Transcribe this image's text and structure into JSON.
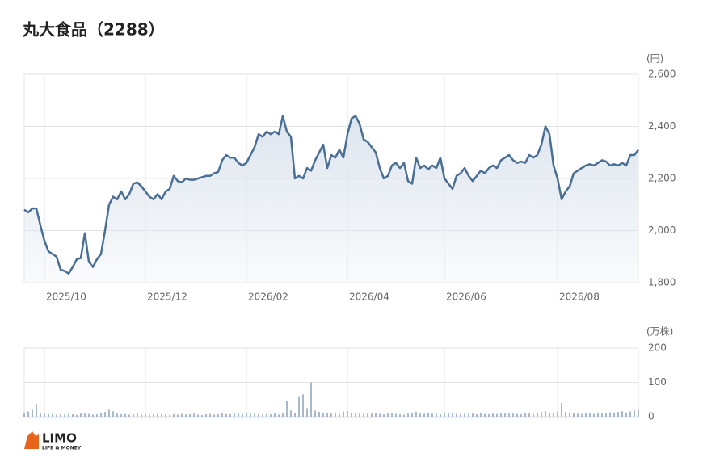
{
  "chart_data": [
    {
      "type": "line",
      "title": "丸大食品（2288）",
      "y_label": "(円)",
      "color": "#4a6f96",
      "fill": "#dde5ee",
      "grid": true,
      "xlim": [
        0,
        152
      ],
      "xticks": [
        {
          "value": 5,
          "label": "2025/10"
        },
        {
          "value": 30,
          "label": "2025/12"
        },
        {
          "value": 55,
          "label": "2026/02"
        },
        {
          "value": 80,
          "label": "2026/04"
        },
        {
          "value": 104,
          "label": "2026/06"
        },
        {
          "value": 132,
          "label": "2026/08"
        }
      ],
      "ylim": [
        1800,
        2600
      ],
      "yticks": [
        {
          "value": 1800,
          "label": "1,800"
        },
        {
          "value": 2000,
          "label": "2,000"
        },
        {
          "value": 2200,
          "label": "2,200"
        },
        {
          "value": 2400,
          "label": "2,400"
        },
        {
          "value": 2600,
          "label": "2,600"
        }
      ],
      "values": [
        2080,
        2070,
        2085,
        2085,
        2020,
        1960,
        1920,
        1910,
        1900,
        1850,
        1845,
        1835,
        1860,
        1890,
        1895,
        1990,
        1880,
        1860,
        1890,
        1910,
        2000,
        2100,
        2130,
        2120,
        2150,
        2120,
        2140,
        2180,
        2185,
        2170,
        2150,
        2130,
        2120,
        2140,
        2120,
        2150,
        2160,
        2210,
        2190,
        2185,
        2200,
        2195,
        2195,
        2200,
        2205,
        2210,
        2210,
        2220,
        2225,
        2270,
        2290,
        2280,
        2280,
        2260,
        2250,
        2260,
        2290,
        2320,
        2370,
        2360,
        2380,
        2370,
        2380,
        2370,
        2440,
        2380,
        2360,
        2200,
        2210,
        2200,
        2240,
        2230,
        2270,
        2300,
        2330,
        2240,
        2290,
        2280,
        2310,
        2280,
        2370,
        2430,
        2440,
        2410,
        2350,
        2340,
        2320,
        2300,
        2240,
        2200,
        2210,
        2250,
        2260,
        2240,
        2260,
        2190,
        2180,
        2280,
        2240,
        2250,
        2235,
        2250,
        2240,
        2280,
        2200,
        2180,
        2160,
        2210,
        2220,
        2240,
        2210,
        2190,
        2210,
        2230,
        2220,
        2240,
        2250,
        2240,
        2270,
        2280,
        2290,
        2270,
        2260,
        2265,
        2260,
        2290,
        2280,
        2290,
        2330,
        2400,
        2370,
        2250,
        2200,
        2120,
        2150,
        2170,
        2220,
        2230,
        2240,
        2250,
        2255,
        2250,
        2260,
        2270,
        2265,
        2250,
        2255,
        2250,
        2260,
        2250,
        2290,
        2290,
        2310
      ]
    },
    {
      "type": "bar",
      "y_label": "(万株)",
      "color": "#a9b9cc",
      "grid": true,
      "xlim": [
        0,
        152
      ],
      "xgrid": [
        5,
        30,
        55,
        80,
        104,
        132
      ],
      "ylim": [
        0,
        200
      ],
      "yticks": [
        0,
        100,
        200
      ],
      "values": [
        12,
        15,
        20,
        38,
        12,
        9,
        7,
        8,
        6,
        7,
        6,
        8,
        7,
        5,
        9,
        12,
        8,
        6,
        7,
        10,
        14,
        20,
        16,
        9,
        7,
        8,
        6,
        7,
        9,
        6,
        7,
        5,
        6,
        8,
        7,
        6,
        5,
        7,
        6,
        8,
        6,
        7,
        9,
        6,
        5,
        7,
        8,
        6,
        7,
        9,
        8,
        7,
        10,
        9,
        7,
        12,
        9,
        8,
        7,
        6,
        8,
        7,
        9,
        6,
        12,
        45,
        18,
        10,
        60,
        65,
        25,
        100,
        18,
        14,
        12,
        10,
        9,
        11,
        8,
        15,
        16,
        12,
        10,
        9,
        8,
        10,
        9,
        11,
        8,
        7,
        9,
        10,
        8,
        7,
        6,
        9,
        12,
        14,
        9,
        8,
        10,
        9,
        8,
        7,
        9,
        12,
        10,
        8,
        7,
        9,
        8,
        9,
        7,
        10,
        8,
        7,
        9,
        8,
        10,
        9,
        12,
        9,
        8,
        7,
        10,
        9,
        8,
        12,
        14,
        16,
        12,
        10,
        15,
        40,
        14,
        11,
        10,
        9,
        8,
        10,
        9,
        8,
        10,
        12,
        11,
        13,
        12,
        14,
        16,
        12,
        15,
        18,
        20
      ]
    }
  ],
  "logo": {
    "name": "LIMO",
    "tagline": "LIFE & MONEY"
  }
}
